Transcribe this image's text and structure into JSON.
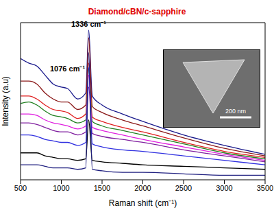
{
  "chart_data": {
    "type": "line",
    "title": "Diamond/cBN/c-sapphire",
    "x_label": "Raman shift (cm⁻¹)",
    "y_label": "Intensity (a.u)",
    "x": [
      500,
      600,
      700,
      800,
      900,
      1000,
      1076,
      1200,
      1300,
      1336,
      1380,
      1500,
      1750,
      2000,
      2500,
      3000,
      3500
    ],
    "series": [
      {
        "color": "#1a1a8c",
        "values": [
          81,
          78,
          76,
          70,
          64,
          62,
          61,
          54,
          58,
          100,
          56,
          50,
          44,
          39,
          30,
          23,
          17
        ]
      },
      {
        "color": "#8b1a1a",
        "values": [
          66,
          66,
          64,
          58,
          54,
          52,
          52,
          47,
          50,
          95,
          49,
          45,
          40,
          36,
          28,
          21,
          16
        ]
      },
      {
        "color": "#e02020",
        "values": [
          56,
          56,
          54,
          50,
          47,
          46,
          45,
          41,
          44,
          78,
          42,
          39,
          35,
          32,
          25,
          19,
          15
        ]
      },
      {
        "color": "#208020",
        "values": [
          51,
          52,
          50,
          46,
          43,
          42,
          41,
          38,
          40,
          74,
          39,
          36,
          33,
          30,
          24,
          18,
          14
        ]
      },
      {
        "color": "#e020e0",
        "values": [
          44,
          44,
          43,
          40,
          38,
          37,
          36,
          34,
          36,
          70,
          35,
          33,
          30,
          27,
          22,
          17,
          13
        ]
      },
      {
        "color": "#8020a0",
        "values": [
          38,
          38,
          37,
          35,
          33,
          32,
          32,
          30,
          32,
          62,
          31,
          29,
          27,
          25,
          20,
          16,
          12
        ]
      },
      {
        "color": "#3030e0",
        "values": [
          30,
          30,
          29,
          27,
          26,
          25,
          25,
          23,
          25,
          75,
          24,
          22,
          20,
          19,
          16,
          13,
          10
        ]
      },
      {
        "color": "#000000",
        "values": [
          18,
          18,
          18,
          16,
          15,
          14,
          14,
          13,
          14,
          40,
          13,
          12,
          11,
          10,
          9,
          8,
          7
        ]
      },
      {
        "color": "#202080",
        "values": [
          10,
          10,
          10,
          9,
          8,
          8,
          8,
          7,
          8,
          85,
          7,
          6,
          5,
          5,
          4,
          3,
          3
        ]
      }
    ],
    "xlim": [
      500,
      3500
    ],
    "xticks": [
      500,
      1000,
      1500,
      2000,
      2500,
      3000,
      3500
    ],
    "ylim": [
      0,
      105
    ],
    "tick_labels": "x",
    "grid": false,
    "annotations": [
      {
        "text": "1336 cm⁻¹",
        "x": 1336,
        "y": 100
      },
      {
        "text": "1076 cm⁻¹",
        "x": 1076,
        "y": 70
      }
    ],
    "inset": {
      "scale_bar": "200 nm"
    }
  }
}
